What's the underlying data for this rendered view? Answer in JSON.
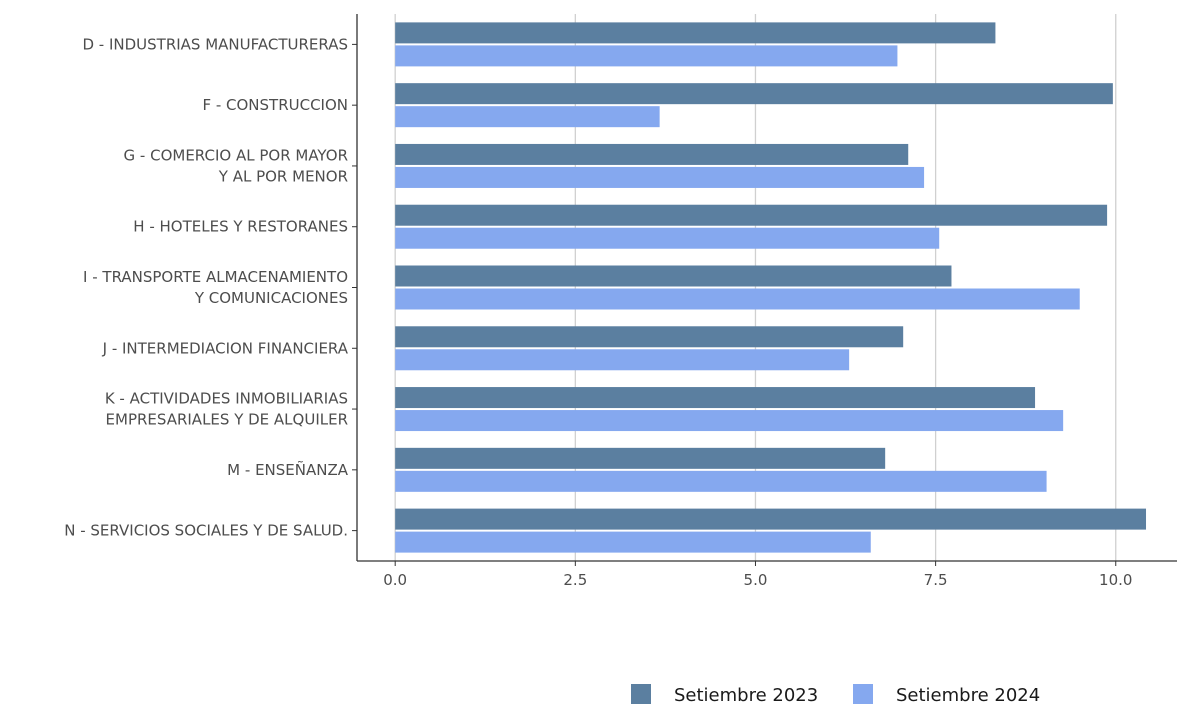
{
  "chart_data": {
    "type": "bar",
    "orientation": "horizontal",
    "categories": [
      [
        "D - INDUSTRIAS  MANUFACTURERAS"
      ],
      [
        "F - CONSTRUCCION"
      ],
      [
        "G - COMERCIO AL POR MAYOR",
        "Y AL POR  MENOR"
      ],
      [
        "H - HOTELES Y RESTORANES"
      ],
      [
        "I - TRANSPORTE ALMACENAMIENTO",
        "Y COMUNICACIONES"
      ],
      [
        "J - INTERMEDIACION FINANCIERA"
      ],
      [
        "K - ACTIVIDADES INMOBILIARIAS",
        "EMPRESARIALES Y DE ALQUILER"
      ],
      [
        "M - ENSEÑANZA"
      ],
      [
        "N - SERVICIOS SOCIALES Y DE SALUD."
      ]
    ],
    "series": [
      {
        "name": "Setiembre 2023",
        "color": "#5b7fa0",
        "values": [
          8.33,
          9.96,
          7.12,
          9.88,
          7.72,
          7.05,
          8.88,
          6.8,
          10.42
        ]
      },
      {
        "name": "Setiembre 2024",
        "color": "#85a8ef",
        "values": [
          6.97,
          3.67,
          7.34,
          7.55,
          9.5,
          6.3,
          9.27,
          9.04,
          6.6
        ]
      }
    ],
    "xlim": [
      -0.53,
      10.85
    ],
    "xticks": [
      0,
      2.5,
      5,
      7.5,
      10
    ],
    "xtick_labels": [
      "0.0",
      "2.5",
      "5.0",
      "7.5",
      "10.0"
    ],
    "xlabel": "",
    "ylabel": "",
    "title": "",
    "grid": "vertical major",
    "legend_position": "bottom-right"
  }
}
